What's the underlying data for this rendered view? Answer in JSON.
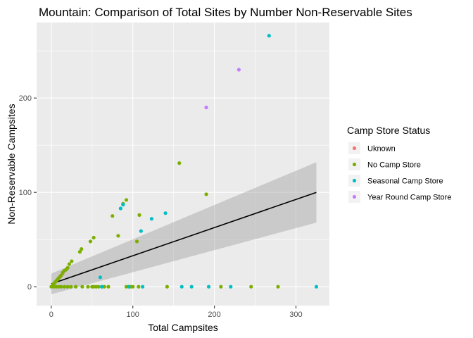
{
  "chart_data": {
    "type": "scatter",
    "title": "Mountain: Comparison of Total Sites by Number Non-Reservable Sites",
    "xlabel": "Total Campsites",
    "ylabel": "Non-Reservable Campsites",
    "xlim": [
      -18,
      341
    ],
    "ylim": [
      -20,
      280
    ],
    "x_ticks": [
      0,
      100,
      200,
      300
    ],
    "y_ticks": [
      0,
      100,
      200
    ],
    "grid": true,
    "legend": {
      "title": "Camp Store Status",
      "position": "right"
    },
    "series": [
      {
        "name": "Uknown",
        "color": "#F8766D",
        "points": [
          [
            10,
            10
          ],
          [
            14,
            14
          ]
        ]
      },
      {
        "name": "No Camp Store",
        "color": "#7CAE00",
        "points": [
          [
            2,
            2
          ],
          [
            3,
            3
          ],
          [
            4,
            4
          ],
          [
            5,
            5
          ],
          [
            6,
            6
          ],
          [
            7,
            7
          ],
          [
            8,
            8
          ],
          [
            9,
            9
          ],
          [
            11,
            11
          ],
          [
            12,
            12
          ],
          [
            14,
            15
          ],
          [
            16,
            17
          ],
          [
            18,
            18
          ],
          [
            20,
            20
          ],
          [
            22,
            24
          ],
          [
            25,
            27
          ],
          [
            35,
            37
          ],
          [
            37,
            40
          ],
          [
            48,
            48
          ],
          [
            52,
            52
          ],
          [
            75,
            75
          ],
          [
            82,
            54
          ],
          [
            88,
            88
          ],
          [
            92,
            92
          ],
          [
            105,
            48
          ],
          [
            108,
            76
          ],
          [
            157,
            131
          ],
          [
            190,
            98
          ],
          [
            0,
            0
          ],
          [
            3,
            0
          ],
          [
            6,
            0
          ],
          [
            9,
            0
          ],
          [
            12,
            0
          ],
          [
            16,
            0
          ],
          [
            20,
            0
          ],
          [
            24,
            0
          ],
          [
            30,
            0
          ],
          [
            38,
            0
          ],
          [
            45,
            0
          ],
          [
            50,
            0
          ],
          [
            52,
            0
          ],
          [
            55,
            0
          ],
          [
            58,
            0
          ],
          [
            62,
            0
          ],
          [
            65,
            0
          ],
          [
            70,
            0
          ],
          [
            92,
            0
          ],
          [
            97,
            0
          ],
          [
            100,
            0
          ],
          [
            107,
            0
          ],
          [
            142,
            0
          ],
          [
            208,
            0
          ],
          [
            245,
            0
          ],
          [
            278,
            0
          ]
        ]
      },
      {
        "name": "Seasonal Camp Store",
        "color": "#00BFC4",
        "points": [
          [
            60,
            10
          ],
          [
            85,
            83
          ],
          [
            88,
            87
          ],
          [
            110,
            59
          ],
          [
            123,
            72
          ],
          [
            140,
            78
          ],
          [
            267,
            266
          ],
          [
            62,
            0
          ],
          [
            95,
            0
          ],
          [
            112,
            0
          ],
          [
            160,
            0
          ],
          [
            172,
            0
          ],
          [
            193,
            0
          ],
          [
            220,
            0
          ],
          [
            325,
            0
          ]
        ]
      },
      {
        "name": "Year Round Camp Store",
        "color": "#C77CFF",
        "points": [
          [
            190,
            190
          ],
          [
            230,
            230
          ]
        ]
      }
    ],
    "trend_line": {
      "points": [
        [
          0,
          3
        ],
        [
          325,
          100
        ]
      ],
      "band_lower": [
        [
          0,
          -8
        ],
        [
          325,
          68
        ]
      ],
      "band_upper": [
        [
          0,
          14
        ],
        [
          325,
          132
        ]
      ]
    }
  }
}
